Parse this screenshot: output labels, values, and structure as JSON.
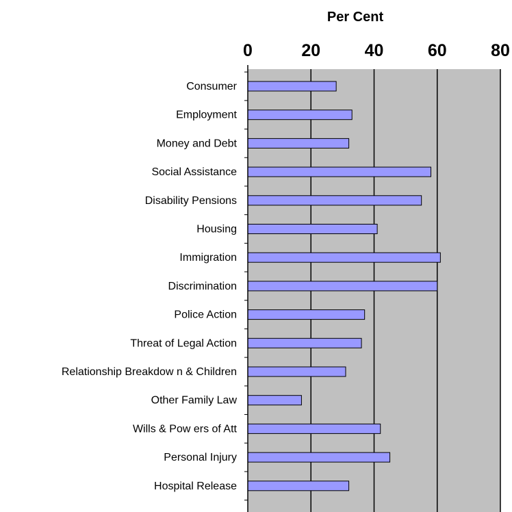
{
  "chart_data": {
    "type": "bar",
    "orientation": "horizontal",
    "xlabel": "Per Cent",
    "xlim": [
      0,
      80
    ],
    "xticks": [
      0,
      20,
      40,
      60,
      80
    ],
    "grid": "vertical",
    "legend": "none",
    "colors": {
      "plot_background": "#c0c0c0",
      "bar_fill": "#9999ff",
      "bar_stroke": "#000000",
      "gridline": "#000000"
    },
    "categories": [
      "Consumer",
      "Employment",
      "Money and Debt",
      "Social Assistance",
      "Disability Pensions",
      "Housing",
      "Immigration",
      "Discrimination",
      "Police Action",
      "Threat of Legal Action",
      "Relationship Breakdow n & Children",
      "Other Family Law",
      "Wills & Pow ers of Att",
      "Personal Injury",
      "Hospital Release"
    ],
    "values": [
      28,
      33,
      32,
      58,
      55,
      41,
      61,
      60,
      37,
      36,
      31,
      17,
      42,
      45,
      32
    ]
  }
}
